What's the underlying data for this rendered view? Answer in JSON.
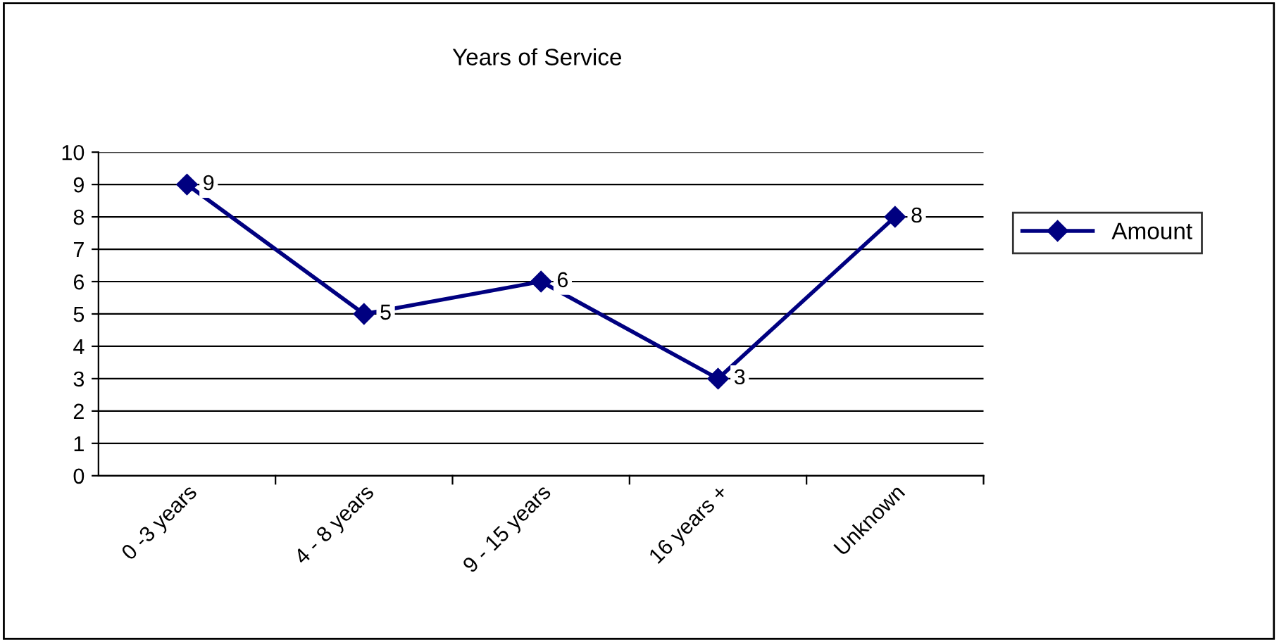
{
  "chart_data": {
    "type": "line",
    "title": "Years of Service",
    "categories": [
      "0 -3 years",
      "4 - 8 years",
      "9 - 15 years",
      "16 years +",
      "Unknown"
    ],
    "series": [
      {
        "name": "Amount",
        "color": "#000080",
        "values": [
          9,
          5,
          6,
          3,
          8
        ]
      }
    ],
    "ylim": [
      0,
      10
    ],
    "yticks": [
      0,
      1,
      2,
      3,
      4,
      5,
      6,
      7,
      8,
      9,
      10
    ],
    "grid": "y",
    "legend": "right",
    "marker": "diamond",
    "line_style": "solid",
    "data_labels": true
  }
}
